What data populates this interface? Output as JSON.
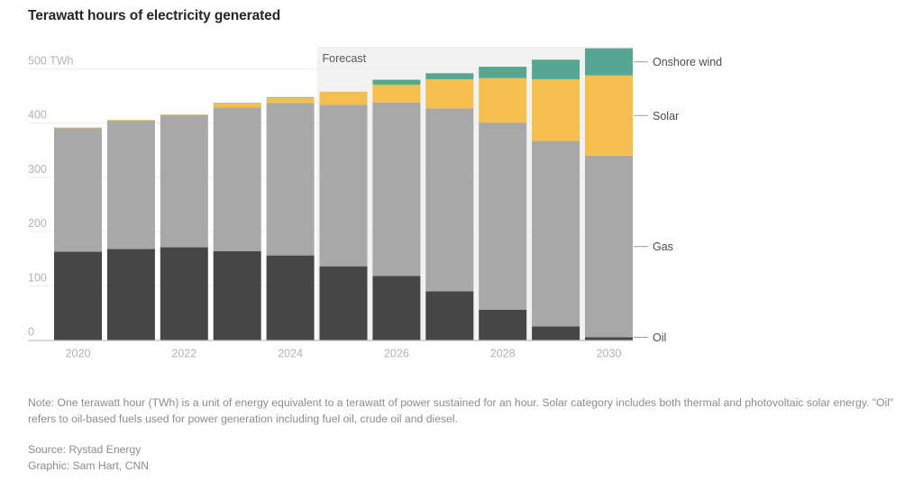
{
  "header": {
    "title": "Terawatt hours of electricity generated"
  },
  "footer": {
    "note": "Note: One terawatt hour (TWh) is a unit of energy equivalent to a terawatt of power sustained for an hour. Solar category includes both thermal and photovoltaic solar energy. \"Oil\" refers to oil-based fuels used for power generation including fuel oil, crude oil and diesel.",
    "source": "Source: Rystad Energy",
    "credit": "Graphic: Sam Hart, CNN"
  },
  "chart_data": {
    "type": "bar",
    "stacked": true,
    "title": "Terawatt hours of electricity generated",
    "xlabel": "",
    "ylabel": "TWh",
    "ylim": [
      0,
      540
    ],
    "yticks": [
      0,
      100,
      200,
      300,
      400,
      500
    ],
    "ytick_labels": [
      "0",
      "100",
      "200",
      "300",
      "400",
      "500 TWh"
    ],
    "categories": [
      "2020",
      "2021",
      "2022",
      "2023",
      "2024",
      "2025",
      "2026",
      "2027",
      "2028",
      "2029",
      "2030"
    ],
    "xtick_labels": [
      "2020",
      "2022",
      "2024",
      "2026",
      "2028",
      "2030"
    ],
    "grid": true,
    "annotation": {
      "label": "Forecast",
      "from_category": "2025",
      "to_category": "2030"
    },
    "legend_placement": "right (direct labels)",
    "series": [
      {
        "name": "Oil",
        "color": "#464646",
        "values": [
          163,
          168,
          171,
          164,
          156,
          136,
          118,
          90,
          56,
          25,
          5
        ]
      },
      {
        "name": "Gas",
        "color": "#a8a8a8",
        "values": [
          228,
          237,
          244,
          265,
          281,
          298,
          320,
          337,
          345,
          342,
          335
        ]
      },
      {
        "name": "Solar",
        "color": "#f5bf4f",
        "values": [
          1,
          1,
          1,
          7,
          10,
          24,
          33,
          54,
          82,
          114,
          148
        ]
      },
      {
        "name": "Onshore wind",
        "color": "#56a691",
        "values": [
          0,
          0,
          0,
          1,
          1,
          0,
          9,
          11,
          21,
          36,
          50
        ]
      }
    ],
    "legend_labels": [
      "Onshore wind",
      "Solar",
      "Gas",
      "Oil"
    ],
    "colors": {
      "axis": "#bdbdbd",
      "grid": "#ececec",
      "tick_label": "#b3b3b3",
      "forecast_band": "#f2f2f2",
      "forecast_label": "#5a5a5a",
      "legend_label": "#4d4d4d"
    }
  }
}
